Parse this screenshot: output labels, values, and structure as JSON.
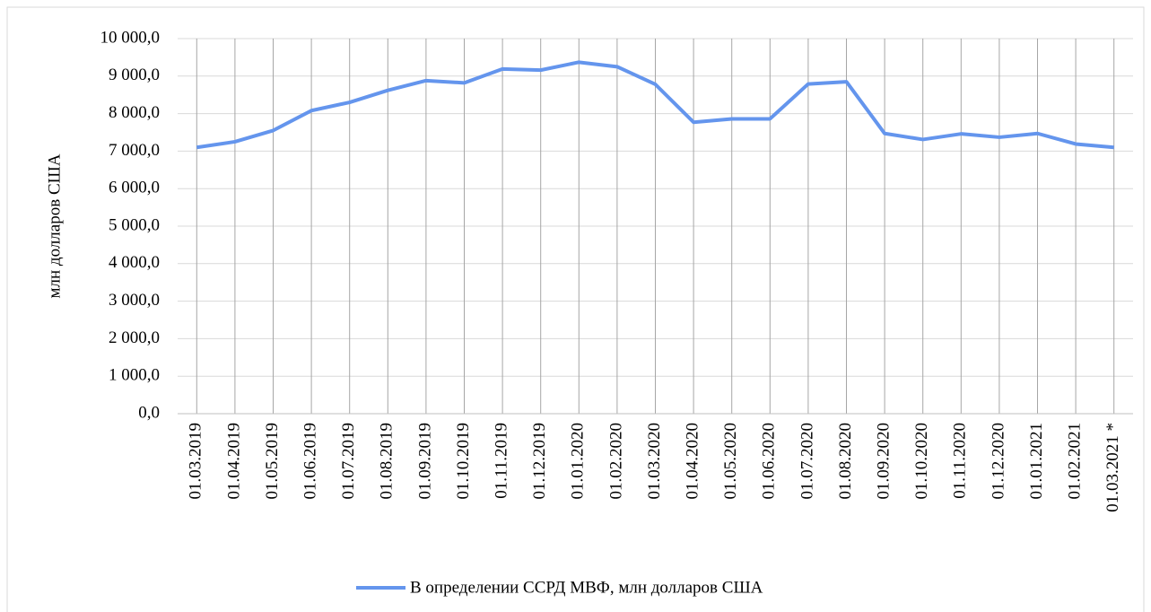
{
  "chart_data": {
    "type": "line",
    "y_label": "млн долларов США",
    "categories": [
      "01.03.2019",
      "01.04.2019",
      "01.05.2019",
      "01.06.2019",
      "01.07.2019",
      "01.08.2019",
      "01.09.2019",
      "01.10.2019",
      "01.11.2019",
      "01.12.2019",
      "01.01.2020",
      "01.02.2020",
      "01.03.2020",
      "01.04.2020",
      "01.05.2020",
      "01.06.2020",
      "01.07.2020",
      "01.08.2020",
      "01.09.2020",
      "01.10.2020",
      "01.11.2020",
      "01.12.2020",
      "01.01.2021",
      "01.02.2021",
      "01.03.2021 *"
    ],
    "series": [
      {
        "name": "В определении ССРД МВФ, млн долларов США",
        "color": "#6495ed",
        "values": [
          7100,
          7250,
          7550,
          8080,
          8300,
          8620,
          8880,
          8820,
          9190,
          9160,
          9370,
          9250,
          8780,
          7770,
          7860,
          7860,
          8790,
          8850,
          7470,
          7310,
          7460,
          7370,
          7470,
          7190,
          7100
        ]
      }
    ],
    "ylim": [
      0,
      10000
    ],
    "yticks": [
      {
        "value": 0,
        "label": "0,0"
      },
      {
        "value": 1000,
        "label": "1 000,0"
      },
      {
        "value": 2000,
        "label": "2 000,0"
      },
      {
        "value": 3000,
        "label": "3 000,0"
      },
      {
        "value": 4000,
        "label": "4 000,0"
      },
      {
        "value": 5000,
        "label": "5 000,0"
      },
      {
        "value": 6000,
        "label": "6 000,0"
      },
      {
        "value": 7000,
        "label": "7 000,0"
      },
      {
        "value": 8000,
        "label": "8 000,0"
      },
      {
        "value": 9000,
        "label": "9 000,0"
      },
      {
        "value": 10000,
        "label": "10 000,0"
      }
    ],
    "grid": true,
    "legend": "bottom"
  }
}
